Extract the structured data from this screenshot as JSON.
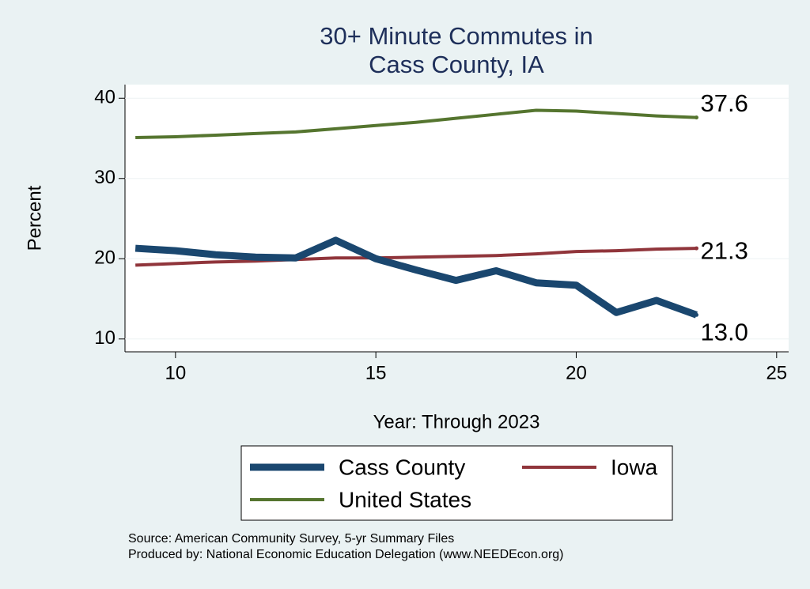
{
  "chart_data": {
    "type": "line",
    "title": [
      "30+ Minute Commutes in",
      "Cass County, IA"
    ],
    "x_label": "Year: Through 2023",
    "y_label": "Percent",
    "x": [
      9,
      10,
      11,
      12,
      13,
      14,
      15,
      16,
      17,
      18,
      19,
      20,
      21,
      22,
      23
    ],
    "series": [
      {
        "name": "Cass County",
        "color": "#1a476f",
        "values": [
          21.3,
          21.0,
          20.5,
          20.2,
          20.1,
          22.3,
          20.0,
          18.6,
          17.3,
          18.5,
          17.0,
          16.7,
          13.3,
          14.8,
          13.0
        ],
        "value_labels": [
          null,
          null,
          null,
          null,
          null,
          null,
          null,
          null,
          null,
          null,
          null,
          null,
          null,
          null,
          "13.0"
        ]
      },
      {
        "name": "Iowa",
        "color": "#90353b",
        "values": [
          19.2,
          19.4,
          19.6,
          19.7,
          19.9,
          20.1,
          20.1,
          20.2,
          20.3,
          20.4,
          20.6,
          20.9,
          21.0,
          21.2,
          21.3
        ],
        "value_labels": [
          null,
          null,
          null,
          null,
          null,
          null,
          null,
          null,
          null,
          null,
          null,
          null,
          null,
          null,
          "21.3"
        ]
      },
      {
        "name": "United States",
        "color": "#55752f",
        "values": [
          35.1,
          35.2,
          35.4,
          35.6,
          35.8,
          36.2,
          36.6,
          37.0,
          37.5,
          38.0,
          38.5,
          38.4,
          38.1,
          37.8,
          37.6
        ],
        "value_labels": [
          null,
          null,
          null,
          null,
          null,
          null,
          null,
          null,
          null,
          null,
          null,
          null,
          null,
          null,
          "37.6"
        ]
      }
    ],
    "xlim": [
      8.74,
      25.3
    ],
    "xticks": [
      10,
      15,
      20,
      25
    ],
    "ylim": [
      8.4,
      41.7
    ],
    "yticks": [
      10,
      20,
      30,
      40
    ],
    "grid": true,
    "notes": [
      "Source: American Community Survey, 5-yr Summary Files",
      "Produced by: National Economic Education Delegation (www.NEEDEcon.org)"
    ]
  }
}
